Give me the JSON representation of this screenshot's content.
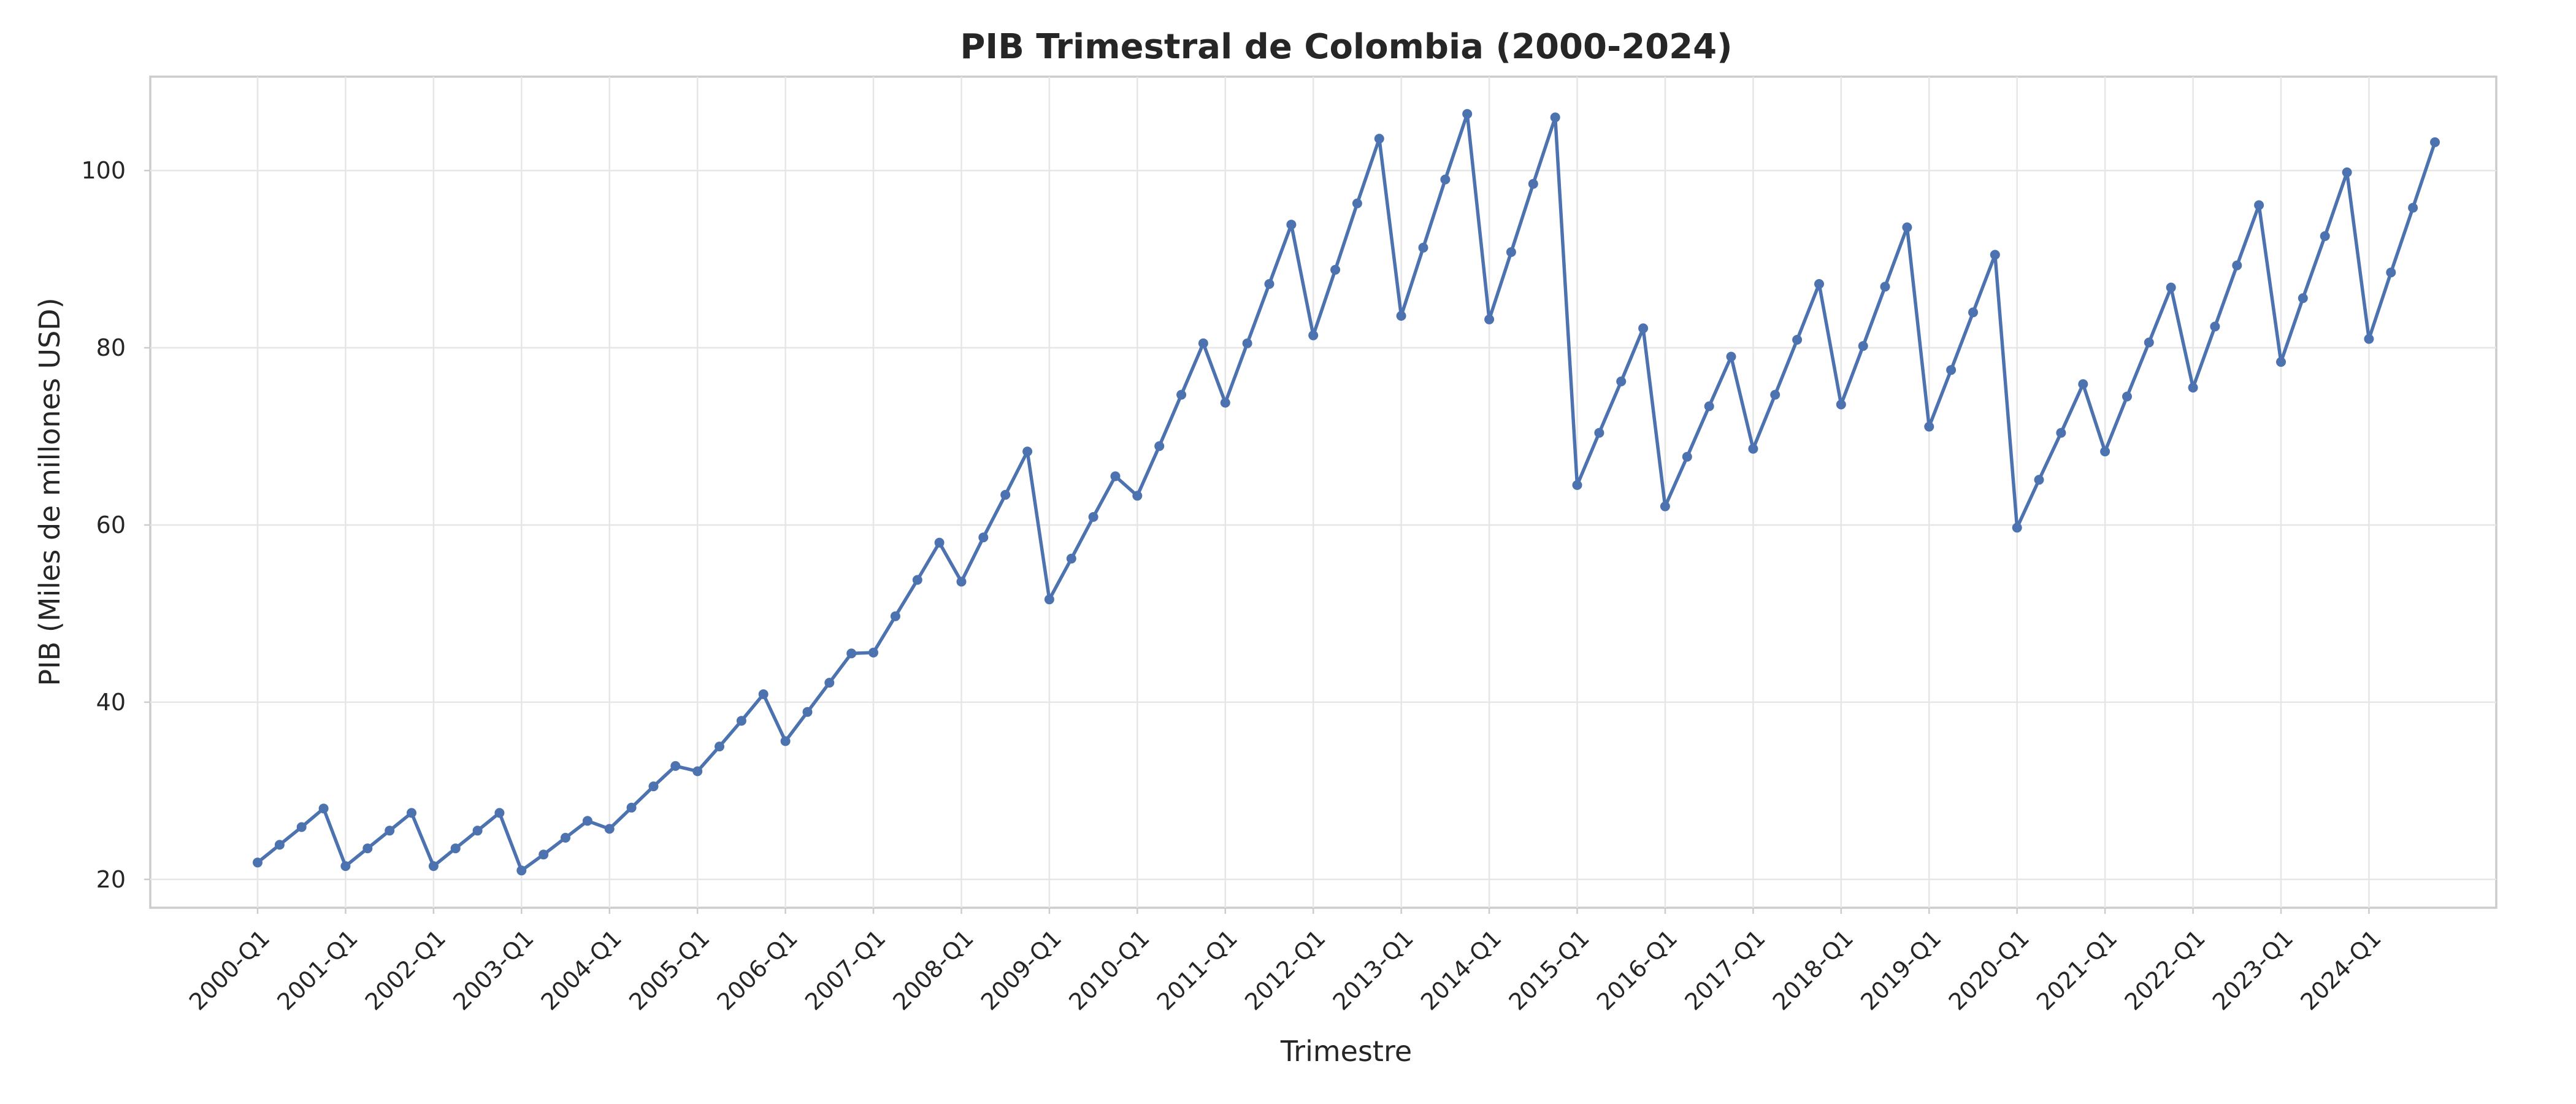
{
  "chart_data": {
    "type": "line",
    "title": "PIB Trimestral de Colombia (2000-2024)",
    "xlabel": "Trimestre",
    "ylabel": "PIB (Miles de millones USD)",
    "ylim": [
      16.8,
      110.6
    ],
    "yticks": [
      20,
      40,
      60,
      80,
      100
    ],
    "xtick_every": 4,
    "grid": true,
    "series_color": "#4c72b0",
    "x": [
      "2000-Q1",
      "2000-Q2",
      "2000-Q3",
      "2000-Q4",
      "2001-Q1",
      "2001-Q2",
      "2001-Q3",
      "2001-Q4",
      "2002-Q1",
      "2002-Q2",
      "2002-Q3",
      "2002-Q4",
      "2003-Q1",
      "2003-Q2",
      "2003-Q3",
      "2003-Q4",
      "2004-Q1",
      "2004-Q2",
      "2004-Q3",
      "2004-Q4",
      "2005-Q1",
      "2005-Q2",
      "2005-Q3",
      "2005-Q4",
      "2006-Q1",
      "2006-Q2",
      "2006-Q3",
      "2006-Q4",
      "2007-Q1",
      "2007-Q2",
      "2007-Q3",
      "2007-Q4",
      "2008-Q1",
      "2008-Q2",
      "2008-Q3",
      "2008-Q4",
      "2009-Q1",
      "2009-Q2",
      "2009-Q3",
      "2009-Q4",
      "2010-Q1",
      "2010-Q2",
      "2010-Q3",
      "2010-Q4",
      "2011-Q1",
      "2011-Q2",
      "2011-Q3",
      "2011-Q4",
      "2012-Q1",
      "2012-Q2",
      "2012-Q3",
      "2012-Q4",
      "2013-Q1",
      "2013-Q2",
      "2013-Q3",
      "2013-Q4",
      "2014-Q1",
      "2014-Q2",
      "2014-Q3",
      "2014-Q4",
      "2015-Q1",
      "2015-Q2",
      "2015-Q3",
      "2015-Q4",
      "2016-Q1",
      "2016-Q2",
      "2016-Q3",
      "2016-Q4",
      "2017-Q1",
      "2017-Q2",
      "2017-Q3",
      "2017-Q4",
      "2018-Q1",
      "2018-Q2",
      "2018-Q3",
      "2018-Q4",
      "2019-Q1",
      "2019-Q2",
      "2019-Q3",
      "2019-Q4",
      "2020-Q1",
      "2020-Q2",
      "2020-Q3",
      "2020-Q4",
      "2021-Q1",
      "2021-Q2",
      "2021-Q3",
      "2021-Q4",
      "2022-Q1",
      "2022-Q2",
      "2022-Q3",
      "2022-Q4",
      "2023-Q1",
      "2023-Q2",
      "2023-Q3",
      "2023-Q4",
      "2024-Q1",
      "2024-Q2",
      "2024-Q3",
      "2024-Q4"
    ],
    "series": [
      {
        "values": [
          21.9,
          23.9,
          25.9,
          28.0,
          21.5,
          23.5,
          25.5,
          27.5,
          21.5,
          23.5,
          25.5,
          27.5,
          21.0,
          22.8,
          24.7,
          26.6,
          25.7,
          28.1,
          30.5,
          32.8,
          32.2,
          35.0,
          37.9,
          40.9,
          35.6,
          38.9,
          42.2,
          45.5,
          45.6,
          49.7,
          53.8,
          58.0,
          53.6,
          58.6,
          63.4,
          68.3,
          51.6,
          56.2,
          60.9,
          65.5,
          63.3,
          68.9,
          74.7,
          80.5,
          73.8,
          80.5,
          87.2,
          93.9,
          81.4,
          88.8,
          96.3,
          103.6,
          83.6,
          91.3,
          99.0,
          106.4,
          83.2,
          90.8,
          98.5,
          106.0,
          64.5,
          70.4,
          76.2,
          82.2,
          62.1,
          67.7,
          73.4,
          79.0,
          68.6,
          74.7,
          80.9,
          87.2,
          73.6,
          80.2,
          86.9,
          93.6,
          71.1,
          77.5,
          84.0,
          90.5,
          59.7,
          65.1,
          70.4,
          75.9,
          68.3,
          74.5,
          80.6,
          86.8,
          75.5,
          82.4,
          89.3,
          96.1,
          78.4,
          85.6,
          92.6,
          99.8,
          81.0,
          88.5,
          95.8,
          103.2
        ]
      }
    ]
  }
}
